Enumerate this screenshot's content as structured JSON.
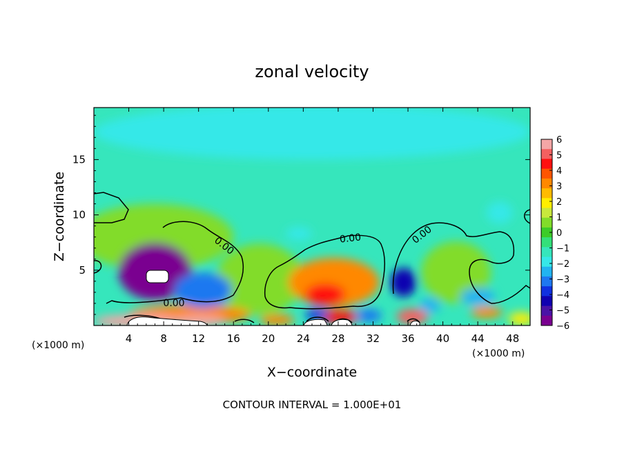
{
  "chart_data": {
    "type": "heatmap",
    "title": "zonal velocity",
    "xlabel": "X−coordinate",
    "ylabel": "Z−coordinate",
    "x_unit_left": "(×1000 m)",
    "x_unit_right": "(×1000 m)",
    "x_ticks": [
      4,
      8,
      12,
      16,
      20,
      24,
      28,
      32,
      36,
      40,
      44,
      48
    ],
    "y_ticks": [
      5,
      10,
      15
    ],
    "xlim": [
      0,
      50
    ],
    "ylim": [
      0,
      19.7
    ],
    "footer": "CONTOUR INTERVAL = 1.000E+01",
    "contour_label": "0.00",
    "colorbar": {
      "tick_labels": [
        "6",
        "5",
        "4",
        "3",
        "2",
        "1",
        "0",
        "−1",
        "−2",
        "−3",
        "−4",
        "−5",
        "−6"
      ],
      "range": [
        -6,
        6
      ],
      "colors": [
        "#f4a6a6",
        "#f46060",
        "#ff1010",
        "#ff5500",
        "#ff8800",
        "#ffbb00",
        "#ffee00",
        "#c8e83c",
        "#82dc2a",
        "#3ccc28",
        "#33e07a",
        "#36e6bc",
        "#36e8e8",
        "#22b4f0",
        "#1e78f0",
        "#1030e0",
        "#1000b0",
        "#4a12a6",
        "#7a0090"
      ]
    },
    "background_value": -1.3,
    "features": [
      {
        "kind": "jet_core",
        "x": 7,
        "z": 4.9,
        "rx": 4.2,
        "rz": 2.6,
        "value": -6.5
      },
      {
        "kind": "jet_core",
        "x": 5.5,
        "z": 5.8,
        "rx": 1.6,
        "rz": 0.9,
        "value": -6
      },
      {
        "kind": "jet_core",
        "x": 12.5,
        "z": 3.2,
        "rx": 3.3,
        "rz": 1.6,
        "value": -3.6
      },
      {
        "kind": "jet_core",
        "x": 35.5,
        "z": 3.9,
        "rx": 1.5,
        "rz": 1.3,
        "value": -4.6
      },
      {
        "kind": "positive",
        "x": 27.5,
        "z": 3.9,
        "rx": 5.2,
        "rz": 2.2,
        "value": 3.6
      },
      {
        "kind": "positive",
        "x": 26.5,
        "z": 2.8,
        "rx": 2.3,
        "rz": 1.0,
        "value": 4.6
      },
      {
        "kind": "positive",
        "x": 29.8,
        "z": 4.6,
        "rx": 2.0,
        "rz": 1.1,
        "value": 3.2
      },
      {
        "kind": "positive",
        "x": 19,
        "z": 4.2,
        "rx": 5.0,
        "rz": 3.2,
        "value": 0.5
      },
      {
        "kind": "positive",
        "x": 7,
        "z": 8.0,
        "rx": 9.0,
        "rz": 3.0,
        "value": 0.4
      },
      {
        "kind": "positive",
        "x": 41.5,
        "z": 4.8,
        "rx": 4.0,
        "rz": 2.8,
        "value": 0.5
      },
      {
        "kind": "positive",
        "x": 11,
        "z": 1.0,
        "rx": 7.0,
        "rz": 0.9,
        "value": 3.5
      },
      {
        "kind": "positive",
        "x": 5,
        "z": 0.4,
        "rx": 5.0,
        "rz": 0.6,
        "value": 6.5
      },
      {
        "kind": "positive",
        "x": 12,
        "z": 0.4,
        "rx": 3.0,
        "rz": 0.5,
        "value": 5.8
      },
      {
        "kind": "positive",
        "x": 21,
        "z": 0.5,
        "rx": 2.0,
        "rz": 0.5,
        "value": 3.2
      },
      {
        "kind": "positive",
        "x": 28,
        "z": 0.8,
        "rx": 2.5,
        "rz": 0.6,
        "value": 4.8
      },
      {
        "kind": "positive",
        "x": 36.5,
        "z": 0.8,
        "rx": 1.8,
        "rz": 0.7,
        "value": 5.2
      },
      {
        "kind": "positive",
        "x": 45,
        "z": 1.2,
        "rx": 1.8,
        "rz": 0.5,
        "value": 3.6
      },
      {
        "kind": "positive",
        "x": 49,
        "z": 0.6,
        "rx": 1.5,
        "rz": 0.6,
        "value": 2.0
      },
      {
        "kind": "negative",
        "x": 25.5,
        "z": 1.0,
        "rx": 1.3,
        "rz": 0.5,
        "value": -3.8
      },
      {
        "kind": "negative",
        "x": 31.5,
        "z": 0.9,
        "rx": 1.5,
        "rz": 0.6,
        "value": -3.0
      },
      {
        "kind": "negative",
        "x": 44,
        "z": 2.6,
        "rx": 2.0,
        "rz": 0.8,
        "value": -2.8
      },
      {
        "kind": "negative",
        "x": 38.5,
        "z": 1.8,
        "rx": 1.2,
        "rz": 0.7,
        "value": -2.5
      },
      {
        "kind": "negative",
        "x": 23.5,
        "z": 8.3,
        "rx": 1.5,
        "rz": 0.6,
        "value": -2.2
      },
      {
        "kind": "negative",
        "x": 46.5,
        "z": 10.2,
        "rx": 1.5,
        "rz": 1.0,
        "value": -2.0
      },
      {
        "kind": "upper",
        "x": 25,
        "z": 17.5,
        "rx": 25,
        "rz": 2.5,
        "value": -1.8
      }
    ],
    "grid": false
  }
}
